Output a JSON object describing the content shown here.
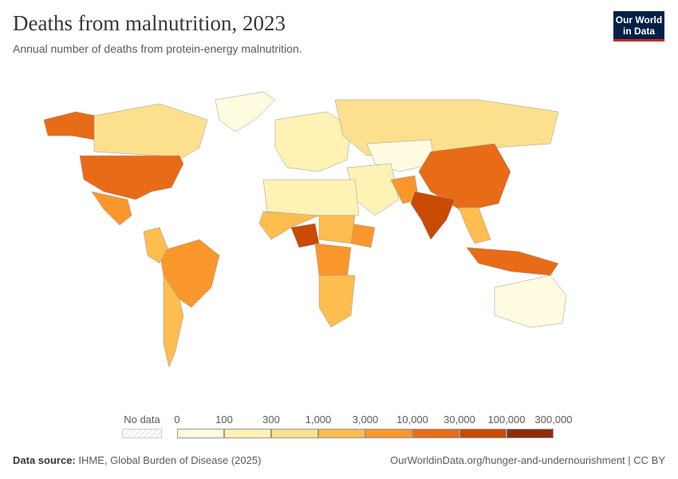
{
  "title": "Deaths from malnutrition, 2023",
  "subtitle": "Annual number of deaths from protein-energy malnutrition.",
  "logo": {
    "line1": "Our World",
    "line2": "in Data"
  },
  "legend": {
    "no_data_label": "No data",
    "ticks": [
      "0",
      "100",
      "300",
      "1,000",
      "3,000",
      "10,000",
      "30,000",
      "100,000",
      "300,000"
    ],
    "colors": [
      "#fefbe1",
      "#fef2b4",
      "#fde08e",
      "#fdbd4f",
      "#fa972c",
      "#e86b17",
      "#c94a03",
      "#8b2d04"
    ]
  },
  "footer": {
    "source_label": "Data source:",
    "source": "IHME, Global Burden of Disease (2025)",
    "url": "OurWorldinData.org/hunger-and-undernourishment | CC BY"
  },
  "map_regions": [
    {
      "name": "Canada",
      "bin": 2
    },
    {
      "name": "United States",
      "bin": 5
    },
    {
      "name": "Mexico",
      "bin": 4
    },
    {
      "name": "Brazil",
      "bin": 4
    },
    {
      "name": "Argentina",
      "bin": 3
    },
    {
      "name": "Russia",
      "bin": 2
    },
    {
      "name": "China",
      "bin": 5
    },
    {
      "name": "India",
      "bin": 6
    },
    {
      "name": "Nigeria",
      "bin": 6
    },
    {
      "name": "Indonesia",
      "bin": 5
    },
    {
      "name": "DR Congo",
      "bin": 4
    },
    {
      "name": "Australia",
      "bin": 0
    },
    {
      "name": "Greenland",
      "bin": 0
    },
    {
      "name": "Alaska",
      "bin": 5
    },
    {
      "name": "Europe",
      "bin": 1
    },
    {
      "name": "North Africa",
      "bin": 1
    },
    {
      "name": "West Africa",
      "bin": 3
    },
    {
      "name": "East Africa",
      "bin": 3
    },
    {
      "name": "Southern Africa",
      "bin": 3
    },
    {
      "name": "Middle East",
      "bin": 1
    },
    {
      "name": "Central Asia",
      "bin": 0
    },
    {
      "name": "Southeast Asia",
      "bin": 3
    },
    {
      "name": "Kazakhstan",
      "bin": 0
    },
    {
      "name": "Pakistan",
      "bin": 4
    },
    {
      "name": "Ethiopia",
      "bin": 4
    }
  ]
}
